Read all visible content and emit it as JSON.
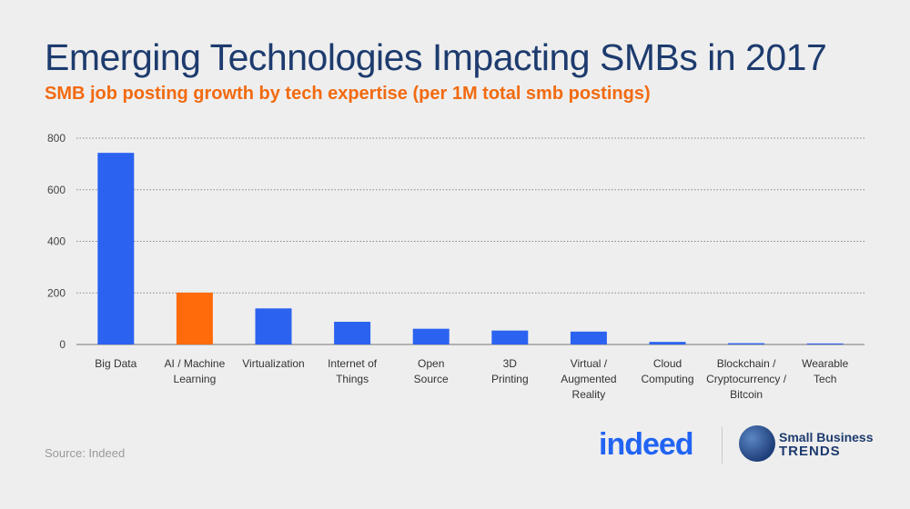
{
  "header": {
    "title": "Emerging Technologies Impacting SMBs in 2017",
    "subtitle": "SMB job posting growth by tech expertise (per 1M total smb postings)"
  },
  "footer": {
    "source": "Source: Indeed",
    "logo_indeed": "indeed",
    "logo_sbt_line1": "Small Business",
    "logo_sbt_line2": "TRENDS"
  },
  "colors": {
    "bar_default": "#2b63f0",
    "bar_highlight": "#ff6a0a",
    "title": "#1d3b6e",
    "subtitle": "#f26a10",
    "grid": "#888888"
  },
  "chart_data": {
    "type": "bar",
    "categories": [
      [
        "Big Data"
      ],
      [
        "AI / Machine",
        "Learning"
      ],
      [
        "Virtualization"
      ],
      [
        "Internet of",
        "Things"
      ],
      [
        "Open",
        "Source"
      ],
      [
        "3D",
        "Printing"
      ],
      [
        "Virtual /",
        "Augmented",
        "Reality"
      ],
      [
        "Cloud",
        "Computing"
      ],
      [
        "Blockchain /",
        "Cryptocurrency /",
        "Bitcoin"
      ],
      [
        "Wearable",
        "Tech"
      ]
    ],
    "values": [
      743,
      201,
      140,
      88,
      61,
      54,
      50,
      10,
      5,
      4
    ],
    "highlight_index": 1,
    "ylim": [
      0,
      800
    ],
    "yticks": [
      0,
      200,
      400,
      600,
      800
    ],
    "grid": true,
    "title": "Emerging Technologies Impacting SMBs in 2017",
    "xlabel": "",
    "ylabel": ""
  }
}
